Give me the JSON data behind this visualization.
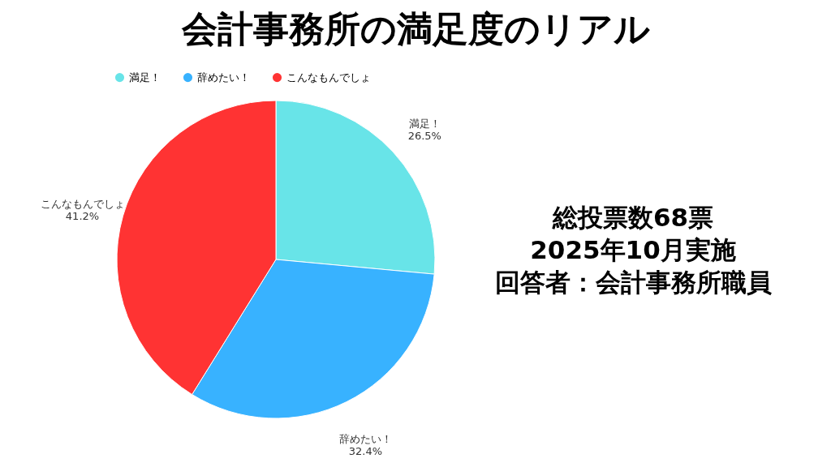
{
  "chart_data": {
    "type": "pie",
    "title": "会計事務所の満足度のリアル",
    "categories": [
      "満足！",
      "辞めたい！",
      "こんなもんでしょ"
    ],
    "values": [
      26.5,
      32.4,
      41.2
    ],
    "colors": [
      "#68e4e8",
      "#38b2ff",
      "#ff3333"
    ],
    "value_labels": [
      "26.5%",
      "32.4%",
      "41.2%"
    ],
    "legend": "top",
    "annotations": [
      "総投票数68票",
      "2025年10月実施",
      "回答者：会計事務所職員"
    ]
  }
}
